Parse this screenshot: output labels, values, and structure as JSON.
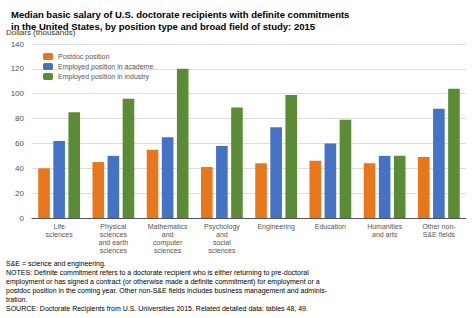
{
  "chart_data": {
    "type": "bar",
    "title": "Median basic salary of U.S. doctorate recipients with definite commitments\nin the United States, by position type and broad field of study: 2015",
    "ylabel": "Dollars (thousands)",
    "categories": [
      "Life\nsciences",
      "Physical\nsciences\nand earth\nsciences",
      "Mathematics\nand\ncomputer\nsciences",
      "Psychology\nand\nsocial\nsciences",
      "Engineering",
      "Education",
      "Humanities\nand arts",
      "Other non-\nS&E fields"
    ],
    "series": [
      {
        "name": "Postdoc position",
        "color": "#E8761A",
        "values": [
          40,
          45,
          55,
          41,
          44,
          46,
          44,
          49
        ]
      },
      {
        "name": "Employed position in academe",
        "color": "#4472C4",
        "values": [
          62,
          50,
          65,
          58,
          73,
          60,
          50,
          88
        ]
      },
      {
        "name": "Employed position in industry",
        "color": "#5B8C35",
        "values": [
          85,
          96,
          120,
          89,
          99,
          79,
          50,
          104
        ]
      }
    ],
    "ylim": [
      0,
      140
    ],
    "yticks": [
      0,
      20,
      40,
      60,
      80,
      100,
      120,
      140
    ],
    "grid": true,
    "legend": "upper left",
    "annotations": [
      "S&E = science and engineering.",
      "NOTES: Definite commitment refers to a doctorate recipient who is either returning to pre-doctoral",
      "employment or has signed a contract (or otherwise made a definite commitment) for employment or a",
      "postdoc position in the coming year. Other non-S&E fields includes business management and adminis-",
      "tration.",
      "SOURCE: Doctorate Recipients from U.S. Universities 2015. Related detailed data: tables 48, 49."
    ]
  }
}
